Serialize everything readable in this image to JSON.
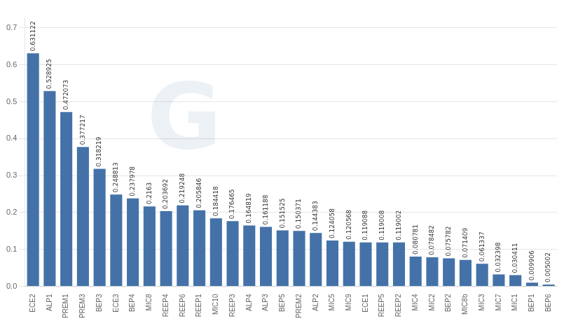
{
  "chart_data": {
    "type": "bar",
    "categories": [
      "ECE2",
      "ALP1",
      "PREM1",
      "PREM3",
      "BEP3",
      "ECE3",
      "BEP4",
      "MIC8",
      "REEP4",
      "REEP6",
      "REEP1",
      "MIC10",
      "REEP3",
      "ALP4",
      "ALP3",
      "BEP5",
      "PREM2",
      "ALP2",
      "MIC5",
      "MIC9",
      "ECE1",
      "REEP5",
      "REEP2",
      "MIC4",
      "MIC2",
      "BEP2",
      "MIC8b",
      "MIC3",
      "MIC7",
      "MIC1",
      "BEP1",
      "BEP6"
    ],
    "values": [
      0.631122,
      0.528925,
      0.472073,
      0.377217,
      0.318219,
      0.248813,
      0.237978,
      0.2163,
      0.203692,
      0.219248,
      0.205846,
      0.184418,
      0.176465,
      0.164819,
      0.161188,
      0.151525,
      0.150371,
      0.144383,
      0.124058,
      0.120568,
      0.119088,
      0.119008,
      0.119002,
      0.080781,
      0.078482,
      0.075782,
      0.071409,
      0.061337,
      0.032398,
      0.030411,
      0.009906,
      0.005002
    ],
    "color": "#4472a8",
    "ylim": [
      0,
      0.73
    ],
    "yticks": [
      {
        "value": 0.0,
        "label": "0.0"
      },
      0.1,
      0.2,
      0.3,
      0.4,
      0.5,
      0.6,
      0.7
    ],
    "grid": true,
    "data_labels": true,
    "annotations": [
      {
        "text": "G"
      }
    ]
  }
}
